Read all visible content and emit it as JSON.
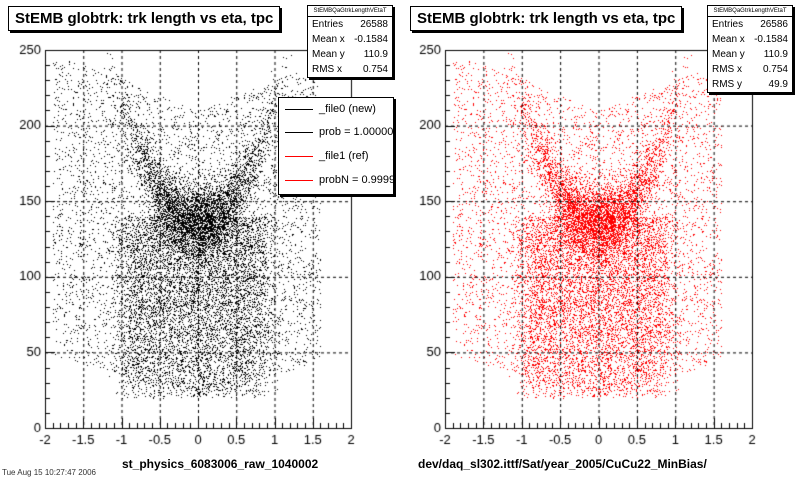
{
  "colors": {
    "black": "#000000",
    "red": "#ff0000"
  },
  "footer_text": "Tue Aug 15 10:27:47 2006",
  "chart_data": [
    {
      "type": "scatter",
      "title": "StEMB globtrk: trk length vs eta, tpc",
      "xlabel": "st_physics_6083006_raw_1040002",
      "ylabel": "",
      "xlim": [
        -2,
        2
      ],
      "ylim": [
        0,
        250
      ],
      "x_ticks": [
        "-2",
        "-1.5",
        "-1",
        "-0.5",
        "0",
        "0.5",
        "1",
        "1.5",
        "2"
      ],
      "y_ticks": [
        "0",
        "50",
        "100",
        "150",
        "200",
        "250"
      ],
      "grid": true,
      "color": "#000000",
      "stats": {
        "header": "StEMBQaGtrkLengthVEtaT",
        "rows": [
          {
            "label": "Entries",
            "value": "26588"
          },
          {
            "label": "Mean x",
            "value": "-0.1584"
          },
          {
            "label": "Mean y",
            "value": "110.9"
          },
          {
            "label": "RMS x",
            "value": "0.754"
          }
        ]
      },
      "legend": {
        "placement": "top-right",
        "entries": [
          {
            "label": "_file0 (new)",
            "color": "#000000"
          },
          {
            "label": "prob = 1.000000",
            "color": "#000000"
          },
          {
            "label": "_file1 (ref)",
            "color": "#ff0000"
          },
          {
            "label": "probN = 0.99997",
            "color": "#ff0000"
          }
        ]
      },
      "series": [
        {
          "points": 26588,
          "components": [
            {
              "shape": "u-band",
              "center_x": 0.0,
              "min_y": 135,
              "arms_y": 200,
              "spread": 0.12,
              "weight": 0.3
            },
            {
              "shape": "ridge",
              "x_range": [
                -1.0,
                0.9
              ],
              "y_range": [
                20,
                140
              ],
              "weight": 0.4
            },
            {
              "shape": "wide",
              "x_range": [
                -1.9,
                1.6
              ],
              "y_range": [
                20,
                250
              ],
              "weight": 0.3
            }
          ]
        }
      ]
    },
    {
      "type": "scatter",
      "title": "StEMB globtrk: trk length vs eta, tpc",
      "xlabel": "dev/daq_sl302.ittf/Sat/year_2005/CuCu22_MinBias/",
      "ylabel": "",
      "xlim": [
        -2,
        2
      ],
      "ylim": [
        0,
        250
      ],
      "x_ticks": [
        "-2",
        "-1.5",
        "-1",
        "-0.5",
        "0",
        "0.5",
        "1",
        "1.5",
        "2"
      ],
      "y_ticks": [
        "0",
        "50",
        "100",
        "150",
        "200",
        "250"
      ],
      "grid": true,
      "color": "#ff0000",
      "stats": {
        "header": "StEMBQaGtrkLengthVEtaT",
        "rows": [
          {
            "label": "Entries",
            "value": "26586"
          },
          {
            "label": "Mean x",
            "value": "-0.1584"
          },
          {
            "label": "Mean y",
            "value": "110.9"
          },
          {
            "label": "RMS x",
            "value": "0.754"
          },
          {
            "label": "RMS y",
            "value": "49.9"
          }
        ]
      },
      "series": [
        {
          "points": 26586,
          "components": [
            {
              "shape": "u-band",
              "center_x": 0.0,
              "min_y": 135,
              "arms_y": 200,
              "spread": 0.12,
              "weight": 0.3
            },
            {
              "shape": "ridge",
              "x_range": [
                -1.0,
                0.9
              ],
              "y_range": [
                20,
                140
              ],
              "weight": 0.4
            },
            {
              "shape": "wide",
              "x_range": [
                -1.9,
                1.6
              ],
              "y_range": [
                20,
                250
              ],
              "weight": 0.3
            }
          ]
        }
      ]
    }
  ]
}
